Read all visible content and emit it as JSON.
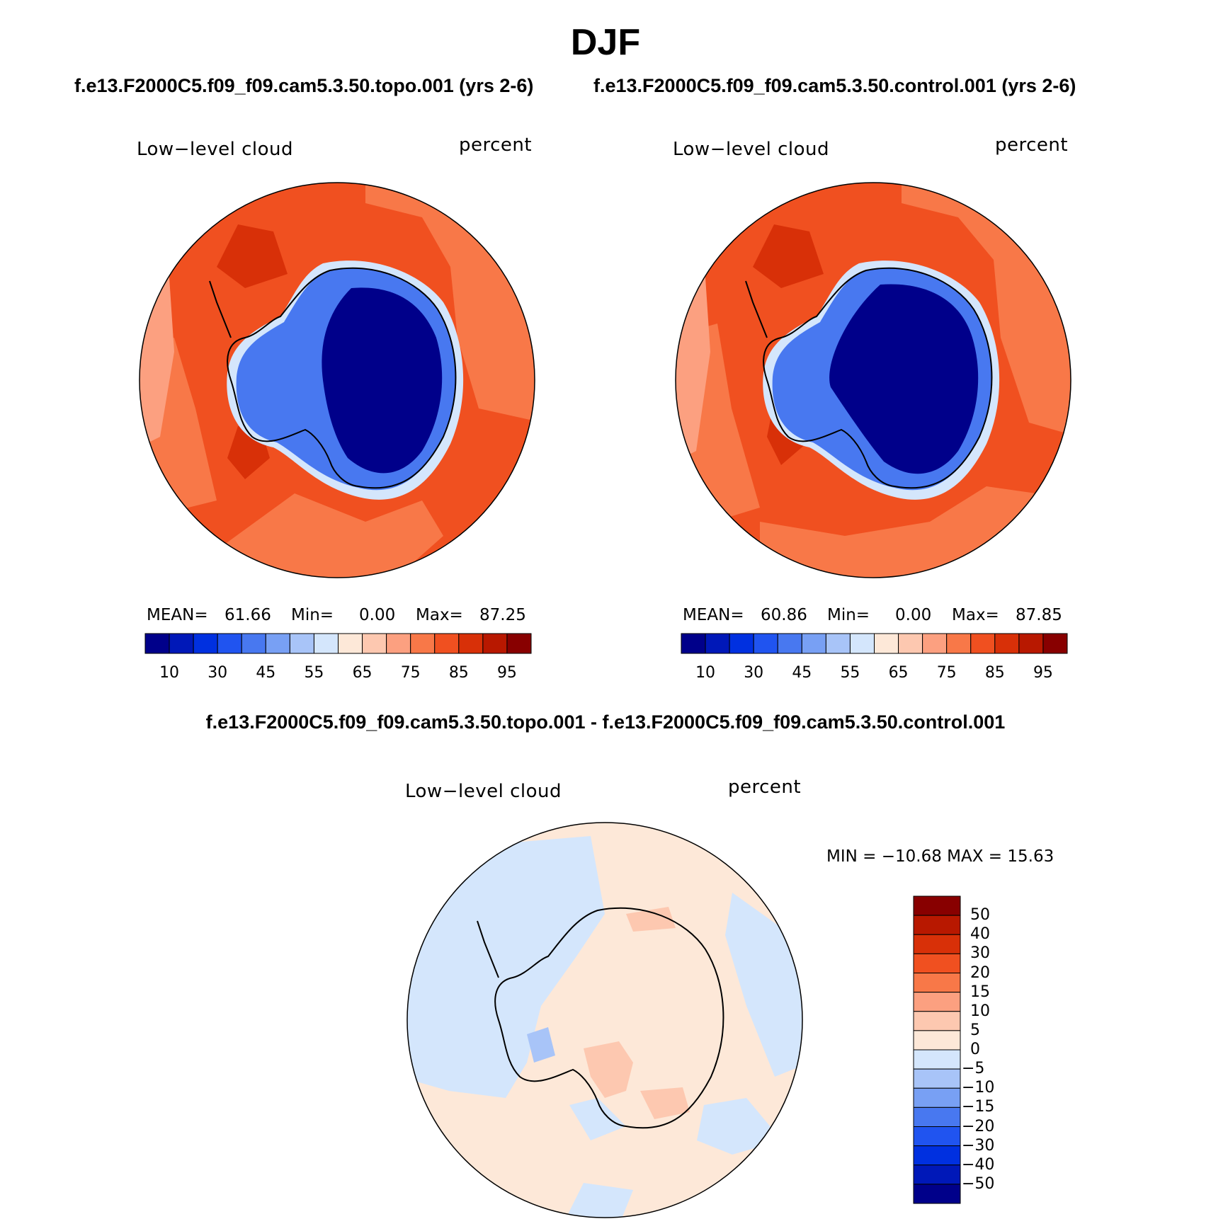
{
  "figure": {
    "season": "DJF",
    "diff_title": "f.e13.F2000C5.f09_f09.cam5.3.50.topo.001 - f.e13.F2000C5.f09_f09.cam5.3.50.control.001"
  },
  "panels": [
    {
      "case_title": "f.e13.F2000C5.f09_f09.cam5.3.50.topo.001 (yrs 2-6)",
      "variable": "Low−level cloud",
      "units": "percent",
      "stats": {
        "mean_label": "MEAN=",
        "mean": "61.66",
        "min_label": "Min=",
        "min": "0.00",
        "max_label": "Max=",
        "max": "87.25"
      }
    },
    {
      "case_title": "f.e13.F2000C5.f09_f09.cam5.3.50.control.001 (yrs 2-6)",
      "variable": "Low−level cloud",
      "units": "percent",
      "stats": {
        "mean_label": "MEAN=",
        "mean": "60.86",
        "min_label": "Min=",
        "min": "0.00",
        "max_label": "Max=",
        "max": "87.85"
      }
    },
    {
      "variable": "Low−level cloud",
      "units": "percent",
      "stats": {
        "text": "MIN = −10.68 MAX =   15.63"
      }
    }
  ],
  "colorbar_abs": {
    "colors": [
      "#00008a",
      "#0018b8",
      "#0030e0",
      "#2054f0",
      "#4878f0",
      "#78a0f4",
      "#a8c4f8",
      "#d4e6fc",
      "#fde8d8",
      "#fdc8b0",
      "#fca080",
      "#f87848",
      "#f05020",
      "#d83008",
      "#b81800",
      "#880000"
    ],
    "tick_labels": [
      "10",
      "30",
      "45",
      "55",
      "65",
      "75",
      "85",
      "95"
    ]
  },
  "colorbar_diff": {
    "colors_top_to_bottom": [
      "#880000",
      "#b81800",
      "#d83008",
      "#f05020",
      "#f87848",
      "#fca080",
      "#fdc8b0",
      "#fde8d8",
      "#d4e6fc",
      "#a8c4f8",
      "#78a0f4",
      "#4878f0",
      "#2054f0",
      "#0030e0",
      "#0018b8",
      "#00008a"
    ],
    "tick_labels_top_to_bottom": [
      "50",
      "40",
      "30",
      "20",
      "15",
      "10",
      "5",
      "0",
      "−5",
      "−10",
      "−15",
      "−20",
      "−30",
      "−40",
      "−50"
    ]
  },
  "map_colors": {
    "ocean_abs": "#f05020",
    "ocean_abs_light": "#f87848",
    "ocean_abs_dark": "#d83008",
    "ocean_abs_pale": "#fca080",
    "ice_edge": "#d4e6fc",
    "ice_mid": "#4878f0",
    "ice_deep": "#00008a",
    "diff_pos": "#fde8d8",
    "diff_pos2": "#fdc8b0",
    "diff_neg": "#d4e6fc",
    "diff_neg2": "#a8c4f8"
  }
}
